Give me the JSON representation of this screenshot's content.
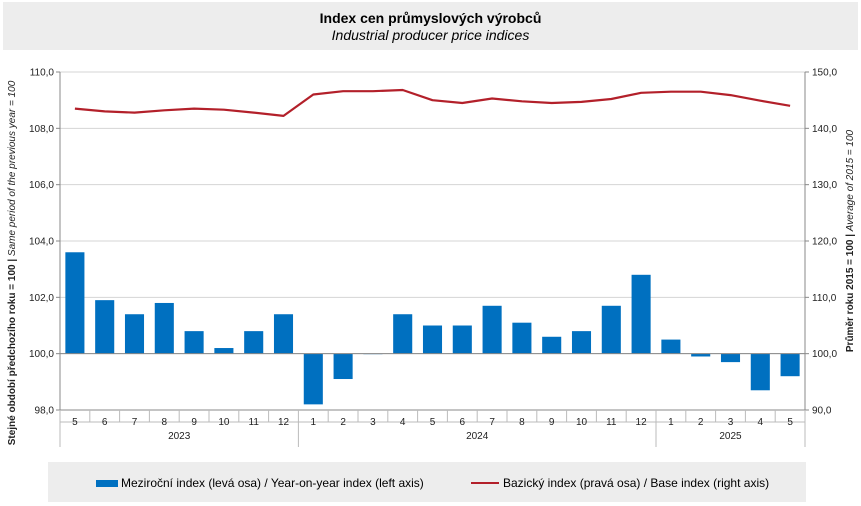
{
  "title": "Index cen průmyslových  výrobců",
  "subtitle": "Industrial producer price indices",
  "chart_data": {
    "type": "bar+line",
    "months": [
      "5",
      "6",
      "7",
      "8",
      "9",
      "10",
      "11",
      "12",
      "1",
      "2",
      "3",
      "4",
      "5",
      "6",
      "7",
      "8",
      "9",
      "10",
      "11",
      "12",
      "1",
      "2",
      "3",
      "4",
      "5"
    ],
    "years": [
      {
        "label": "2023",
        "count": 8
      },
      {
        "label": "2024",
        "count": 12
      },
      {
        "label": "2025",
        "count": 5
      }
    ],
    "series": [
      {
        "name": "Meziroční index (levá osa) / Year-on-year index (left axis)",
        "type": "bar",
        "axis": "left",
        "color": "#0070c0",
        "values": [
          103.6,
          101.9,
          101.4,
          101.8,
          100.8,
          100.2,
          100.8,
          101.4,
          98.2,
          99.1,
          100.0,
          101.4,
          101.0,
          101.0,
          101.7,
          101.1,
          100.6,
          100.8,
          101.7,
          102.8,
          100.5,
          99.9,
          99.7,
          98.7,
          99.2
        ]
      },
      {
        "name": "Bazický index (pravá osa) / Base index (right axis)",
        "type": "line",
        "axis": "right",
        "color": "#b3202a",
        "values": [
          143.5,
          143.0,
          142.8,
          143.2,
          143.5,
          143.3,
          142.8,
          142.2,
          146.0,
          146.6,
          146.6,
          146.8,
          145.0,
          144.5,
          145.3,
          144.8,
          144.5,
          144.7,
          145.2,
          146.3,
          146.5,
          146.5,
          145.9,
          144.9,
          144.0
        ]
      }
    ],
    "left_axis": {
      "label": "Stejné období předchozího roku = 100 | Same period of the previous year = 100",
      "ylim": [
        98.0,
        110.0
      ],
      "ticks": [
        "98,0",
        "100,0",
        "102,0",
        "104,0",
        "106,0",
        "108,0",
        "110,0"
      ],
      "tick_values": [
        98,
        100,
        102,
        104,
        106,
        108,
        110
      ]
    },
    "right_axis": {
      "label": "Průměr roku 2015 = 100 | Average of 2015 = 100",
      "ylim": [
        90.0,
        150.0
      ],
      "ticks": [
        "90,0",
        "100,0",
        "110,0",
        "120,0",
        "130,0",
        "140,0",
        "150,0"
      ],
      "tick_values": [
        90,
        100,
        110,
        120,
        130,
        140,
        150
      ]
    },
    "grid": true,
    "legend_placement": "bottom"
  }
}
